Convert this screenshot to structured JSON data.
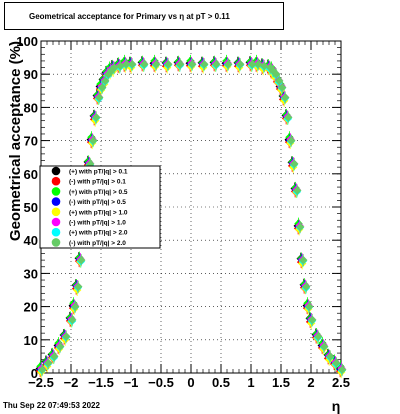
{
  "title": "Geometrical acceptance for Primary vs  η at pT > 0.11",
  "timestamp": "Thu Sep 22 07:49:53 2022",
  "chart_data": {
    "type": "scatter",
    "title": "Geometrical acceptance for Primary vs  η at pT > 0.11",
    "xlabel": "η",
    "ylabel": "Geometrical acceptance (%)",
    "xlim": [
      -2.5,
      2.5
    ],
    "ylim": [
      0,
      100
    ],
    "grid": true,
    "legend_position": "left",
    "x_ticks": [
      "−2.5",
      "−2",
      "−1.5",
      "−1",
      "−0.5",
      "0",
      "0.5",
      "1",
      "1.5",
      "2",
      "2.5"
    ],
    "y_ticks": [
      "0",
      "10",
      "20",
      "30",
      "40",
      "50",
      "60",
      "70",
      "80",
      "90",
      "100"
    ],
    "profile": {
      "eta": [
        -2.5,
        -2.4,
        -2.3,
        -2.2,
        -2.1,
        -2.0,
        -1.95,
        -1.9,
        -1.85,
        -1.8,
        -1.75,
        -1.7,
        -1.65,
        -1.6,
        -1.55,
        -1.5,
        -1.45,
        -1.4,
        -1.35,
        -1.3,
        -1.2,
        -1.1,
        -1.0,
        -0.8,
        -0.6,
        -0.4,
        -0.2,
        0.0,
        0.2,
        0.4,
        0.6,
        0.8,
        1.0,
        1.1,
        1.2,
        1.3,
        1.35,
        1.4,
        1.45,
        1.5,
        1.55,
        1.6,
        1.65,
        1.7,
        1.75,
        1.8,
        1.85,
        1.9,
        1.95,
        2.0,
        2.1,
        2.2,
        2.3,
        2.4,
        2.5
      ],
      "acceptance": [
        1,
        3,
        5,
        8,
        11,
        16,
        20,
        26,
        34,
        44,
        55,
        63,
        70,
        77,
        83,
        86,
        88,
        90,
        91,
        92,
        92.5,
        93,
        93,
        93,
        93,
        93,
        93,
        93,
        93,
        93,
        93,
        93,
        93,
        93,
        92.5,
        92,
        91,
        90,
        88,
        86,
        83,
        77,
        70,
        63,
        55,
        44,
        34,
        26,
        20,
        16,
        11,
        8,
        5,
        3,
        1
      ]
    },
    "series": [
      {
        "name": "(+) with pT/|q| > 0.1",
        "color": "#000000",
        "offset": 0.3
      },
      {
        "name": "(-) with pT/|q| > 0.1",
        "color": "#ff0000",
        "offset": -0.3
      },
      {
        "name": "(+) with pT/|q| > 0.5",
        "color": "#00ff00",
        "offset": 0.5
      },
      {
        "name": "(-) with pT/|q| > 0.5",
        "color": "#0000ff",
        "offset": 0.1
      },
      {
        "name": "(+) with pT/|q| > 1.0",
        "color": "#ffff00",
        "offset": -0.5
      },
      {
        "name": "(-) with pT/|q| > 1.0",
        "color": "#ff00ff",
        "offset": 0.2
      },
      {
        "name": "(+) with pT/|q| > 2.0",
        "color": "#00ffff",
        "offset": -0.2
      },
      {
        "name": "(-) with pT/|q| > 2.0",
        "color": "#66cc66",
        "offset": 0.0
      }
    ]
  }
}
